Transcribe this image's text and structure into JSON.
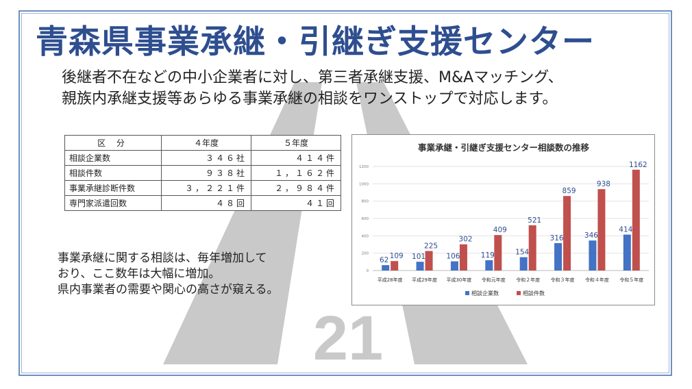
{
  "header": {
    "title": "青森県事業承継・引継ぎ支援センター"
  },
  "intro": {
    "line1": "後継者不在などの中小企業者に対し、第三者承継支援、M&Aマッチング、",
    "line2": "親族内承継支援等あらゆる事業承継の相談をワンストップで対応します。"
  },
  "table": {
    "headers": [
      "区 分",
      "４年度",
      "５年度"
    ],
    "rows": [
      [
        "相談企業数",
        "３４６社",
        "４１４件"
      ],
      [
        "相談件数",
        "９３８社",
        "１，１６２件"
      ],
      [
        "事業承継診断件数",
        "３，２２１件",
        "２，９８４件"
      ],
      [
        "専門家派遣回数",
        "４８回",
        "４１回"
      ]
    ]
  },
  "comment": {
    "line1": "事業承継に関する相談は、毎年増加して",
    "line2": "おり、ここ数年は大幅に増加。",
    "line3": "県内事業者の需要や関心の高さが窺える。"
  },
  "watermark": {
    "text": "21"
  },
  "chart_data": {
    "type": "bar",
    "title": "事業承継・引継ぎ支援センター相談数の推移",
    "categories": [
      "平成28年度",
      "平成29年度",
      "平成30年度",
      "令和元年度",
      "令和２年度",
      "令和３年度",
      "令和４年度",
      "令和５年度"
    ],
    "series": [
      {
        "name": "相談企業数",
        "color": "#4472c4",
        "values": [
          62,
          101,
          106,
          119,
          154,
          316,
          346,
          414
        ]
      },
      {
        "name": "相談件数",
        "color": "#c0504d",
        "values": [
          109,
          225,
          302,
          409,
          521,
          859,
          938,
          1162
        ]
      }
    ],
    "yticks": [
      "0",
      "200",
      "400",
      "600",
      "800",
      "1000",
      "1200"
    ],
    "ylim": [
      0,
      1200
    ],
    "grid": true,
    "legend": "bottom",
    "label_color": "#2e4e8f"
  }
}
